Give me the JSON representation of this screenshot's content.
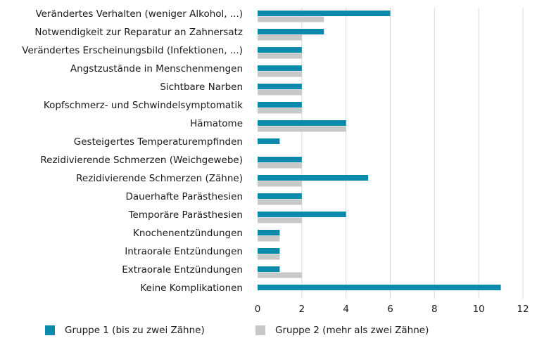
{
  "chart_data": {
    "type": "bar",
    "orientation": "horizontal",
    "title": "",
    "xlabel": "",
    "ylabel": "",
    "xlim": [
      0,
      12
    ],
    "xticks": [
      0,
      2,
      4,
      6,
      8,
      10,
      12
    ],
    "grid": true,
    "legend_position": "bottom",
    "categories": [
      "Verändertes Verhalten (weniger Alkohol, ...)",
      "Notwendigkeit zur Reparatur an Zahnersatz",
      "Verändertes Erscheinungsbild (Infektionen, ...)",
      "Angstzustände in Menschenmengen",
      "Sichtbare Narben",
      "Kopfschmerz- und Schwindelsymptomatik",
      "Hämatome",
      "Gesteigertes Temperaturempfinden",
      "Rezidivierende Schmerzen (Weichgewebe)",
      "Rezidivierende Schmerzen (Zähne)",
      "Dauerhafte Parästhesien",
      "Temporäre Parästhesien",
      "Knochenentzündungen",
      "Intraorale Entzündungen",
      "Extraorale Entzündungen",
      "Keine Komplikationen"
    ],
    "series": [
      {
        "name": "Gruppe 1 (bis zu zwei Zähne)",
        "color": "#0a8bab",
        "values": [
          6,
          3,
          2,
          2,
          2,
          2,
          4,
          1,
          2,
          5,
          2,
          4,
          1,
          1,
          1,
          11
        ]
      },
      {
        "name": "Gruppe 2 (mehr als zwei Zähne)",
        "color": "#c8c8c8",
        "values": [
          3,
          2,
          2,
          2,
          2,
          2,
          4,
          0,
          2,
          2,
          2,
          2,
          1,
          1,
          2,
          0
        ]
      }
    ]
  }
}
